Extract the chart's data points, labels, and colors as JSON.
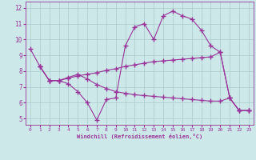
{
  "line1_x": [
    0,
    1,
    2,
    3,
    4,
    5,
    6,
    7,
    8,
    9,
    10,
    11,
    12,
    13,
    14,
    15,
    16,
    17,
    18,
    19,
    20,
    21,
    22,
    23
  ],
  "line1_y": [
    9.4,
    8.3,
    7.4,
    7.4,
    7.2,
    6.7,
    6.0,
    4.9,
    6.2,
    6.3,
    9.6,
    10.8,
    11.0,
    10.0,
    11.5,
    11.8,
    11.5,
    11.3,
    10.6,
    9.6,
    9.2,
    6.3,
    5.5,
    5.5
  ],
  "line2_x": [
    1,
    2,
    3,
    4,
    5,
    6,
    7,
    8,
    9,
    10,
    11,
    12,
    13,
    14,
    15,
    16,
    17,
    18,
    19,
    20,
    21,
    22,
    23
  ],
  "line2_y": [
    8.3,
    7.4,
    7.4,
    7.55,
    7.7,
    7.8,
    7.9,
    8.05,
    8.15,
    8.3,
    8.4,
    8.5,
    8.6,
    8.65,
    8.7,
    8.75,
    8.8,
    8.85,
    8.9,
    9.2,
    6.3,
    5.5,
    5.5
  ],
  "line3_x": [
    1,
    2,
    3,
    4,
    5,
    6,
    7,
    8,
    9,
    10,
    11,
    12,
    13,
    14,
    15,
    16,
    17,
    18,
    19,
    20,
    21,
    22,
    23
  ],
  "line3_y": [
    8.3,
    7.4,
    7.4,
    7.6,
    7.8,
    7.5,
    7.15,
    6.9,
    6.7,
    6.6,
    6.5,
    6.45,
    6.4,
    6.35,
    6.3,
    6.25,
    6.2,
    6.15,
    6.1,
    6.1,
    6.3,
    5.5,
    5.5
  ],
  "line_color": "#993399",
  "background_color": "#cce8e8",
  "grid_color": "#aacccc",
  "xlabel": "Windchill (Refroidissement éolien,°C)",
  "xlim": [
    -0.5,
    23.5
  ],
  "ylim": [
    4.6,
    12.4
  ],
  "yticks": [
    5,
    6,
    7,
    8,
    9,
    10,
    11,
    12
  ],
  "xticks": [
    0,
    1,
    2,
    3,
    4,
    5,
    6,
    7,
    8,
    9,
    10,
    11,
    12,
    13,
    14,
    15,
    16,
    17,
    18,
    19,
    20,
    21,
    22,
    23
  ]
}
